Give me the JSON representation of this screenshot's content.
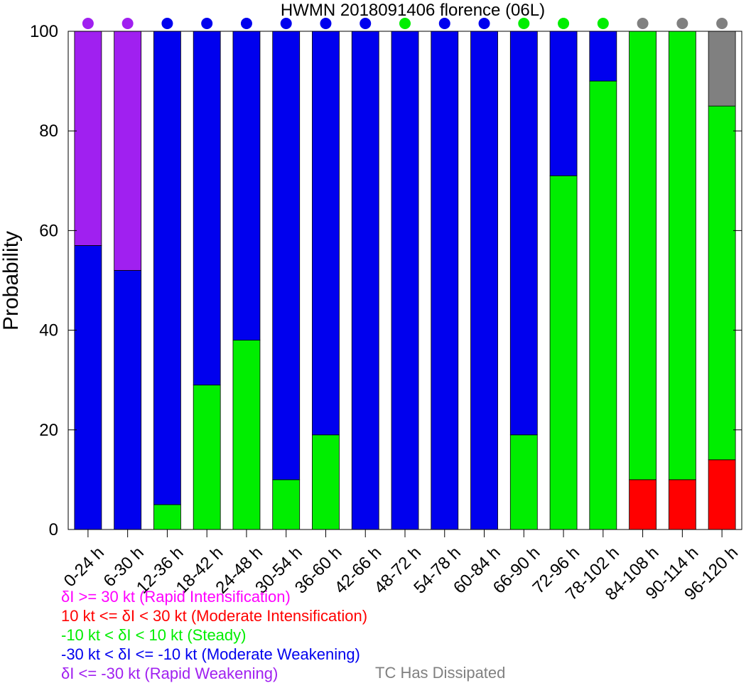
{
  "chart_data": {
    "type": "bar",
    "stacked": true,
    "title": "HWMN 2018091406 florence (06L)",
    "xlabel": "",
    "ylabel": "Probability",
    "ylim": [
      0,
      100
    ],
    "yticks": [
      0,
      20,
      40,
      60,
      80,
      100
    ],
    "grid": false,
    "categories": [
      "0-24 h",
      "6-30 h",
      "12-36 h",
      "18-42 h",
      "24-48 h",
      "30-54 h",
      "36-60 h",
      "42-66 h",
      "48-72 h",
      "54-78 h",
      "60-84 h",
      "66-90 h",
      "72-96 h",
      "78-102 h",
      "84-108 h",
      "90-114 h",
      "96-120 h"
    ],
    "series": [
      {
        "key": "moderate_intensification",
        "color": "#ff0000",
        "values": [
          0,
          0,
          0,
          0,
          0,
          0,
          0,
          0,
          0,
          0,
          0,
          0,
          0,
          0,
          10,
          10,
          14
        ]
      },
      {
        "key": "steady",
        "color": "#00ee00",
        "values": [
          0,
          0,
          5,
          29,
          38,
          10,
          19,
          0,
          0,
          0,
          0,
          19,
          71,
          90,
          90,
          90,
          71
        ]
      },
      {
        "key": "moderate_weakening",
        "color": "#0000ee",
        "values": [
          57,
          52,
          95,
          71,
          62,
          90,
          81,
          100,
          100,
          100,
          100,
          81,
          29,
          10,
          0,
          0,
          0
        ]
      },
      {
        "key": "rapid_weakening",
        "color": "#a020f0",
        "values": [
          43,
          48,
          0,
          0,
          0,
          0,
          0,
          0,
          0,
          0,
          0,
          0,
          0,
          0,
          0,
          0,
          0
        ]
      },
      {
        "key": "dissipated",
        "color": "#808080",
        "values": [
          0,
          0,
          0,
          0,
          0,
          0,
          0,
          0,
          0,
          0,
          0,
          0,
          0,
          0,
          0,
          0,
          15
        ]
      }
    ],
    "top_markers": [
      "#a020f0",
      "#a020f0",
      "#0000ee",
      "#0000ee",
      "#0000ee",
      "#0000ee",
      "#0000ee",
      "#0000ee",
      "#00ee00",
      "#0000ee",
      "#0000ee",
      "#00ee00",
      "#00ee00",
      "#00ee00",
      "#808080",
      "#808080",
      "#808080"
    ]
  },
  "legend": [
    {
      "text": "δI >= 30 kt (Rapid Intensification)",
      "color": "#ff00ff"
    },
    {
      "text": "10 kt <= δI < 30 kt (Moderate Intensification)",
      "color": "#ff0000"
    },
    {
      "text": "-10 kt < δI < 10 kt (Steady)",
      "color": "#00ee00"
    },
    {
      "text": "-30 kt < δI <= -10 kt (Moderate Weakening)",
      "color": "#0000ee"
    },
    {
      "text": "δI <= -30 kt (Rapid Weakening)",
      "color": "#a020f0"
    }
  ],
  "legend_dissipated": {
    "text": "TC Has Dissipated",
    "color": "#808080"
  }
}
